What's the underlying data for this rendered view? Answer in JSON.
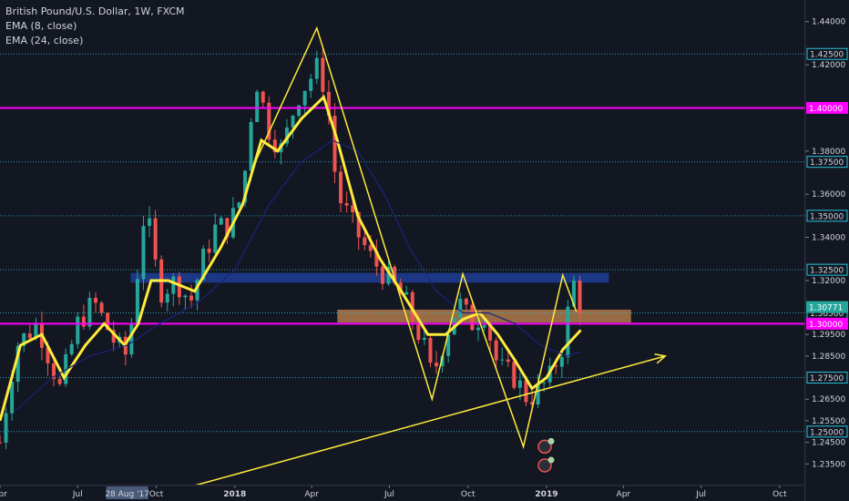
{
  "legend": {
    "title": "British Pound/U.S. Dollar, 1W, FXCM",
    "ema1": "EMA (8, close)",
    "ema2": "EMA (24, close)"
  },
  "colors": {
    "background": "#131722",
    "up": "#26a69a",
    "down": "#ef5350",
    "ema_fast": "#ffeb3b",
    "ema_slow": "#1a237e",
    "magenta": "#ff00ff",
    "hline_dotted": "#26c6da",
    "support_zone": "#b07a4a",
    "resistance_zone": "#2962ff",
    "annotation": "#ffeb3b"
  },
  "chart_data": {
    "type": "candlestick",
    "symbol": "British Pound/U.S. Dollar",
    "interval": "1W",
    "source": "FXCM",
    "ylim": [
      1.225,
      1.45
    ],
    "x_range": [
      "2017-04-01",
      "2019-10-31"
    ],
    "x_ticks": [
      {
        "date": "2017-04-01",
        "label": "Apr"
      },
      {
        "date": "2017-07-01",
        "label": "Jul"
      },
      {
        "date": "2017-10-01",
        "label": "Oct"
      },
      {
        "date": "2018-01-01",
        "label": "2018"
      },
      {
        "date": "2018-04-01",
        "label": "Apr"
      },
      {
        "date": "2018-07-01",
        "label": "Jul"
      },
      {
        "date": "2018-10-01",
        "label": "Oct"
      },
      {
        "date": "2019-01-01",
        "label": "2019"
      },
      {
        "date": "2019-04-01",
        "label": "Apr"
      },
      {
        "date": "2019-07-01",
        "label": "Jul"
      },
      {
        "date": "2019-10-01",
        "label": "Oct"
      }
    ],
    "y_ticks": [
      "1.44000",
      "1.42000",
      "1.38000",
      "1.36000",
      "1.34000",
      "1.32000",
      "1.29500",
      "1.28500",
      "1.26500",
      "1.25500",
      "1.24500",
      "1.23500"
    ],
    "y_levels_labeled": [
      "1.42500",
      "1.37500",
      "1.35000",
      "1.32500",
      "1.30500",
      "1.27500",
      "1.25000"
    ],
    "highlighted_labels": [
      {
        "value": 1.4,
        "label": "1.40000"
      },
      {
        "value": 1.3,
        "label": "1.30000"
      },
      {
        "value": 1.30771,
        "label": "1.30771"
      }
    ],
    "crosshair_date_label": "28 Aug '17",
    "magenta_lines": [
      1.4,
      1.3
    ],
    "dotted_levels": [
      1.425,
      1.375,
      1.35,
      1.325,
      1.305,
      1.275,
      1.25
    ],
    "zones": [
      {
        "name": "resistance",
        "from": "2017-09-01",
        "to": "2019-03-15",
        "low": 1.319,
        "high": 1.3235
      },
      {
        "name": "support",
        "from": "2018-05-01",
        "to": "2019-04-10",
        "low": 1.3005,
        "high": 1.3065
      }
    ],
    "close_path": [
      [
        "2017-04-01",
        1.245
      ],
      [
        "2017-04-20",
        1.29
      ],
      [
        "2017-05-15",
        1.3
      ],
      [
        "2017-06-10",
        1.27
      ],
      [
        "2017-07-01",
        1.3
      ],
      [
        "2017-07-20",
        1.31
      ],
      [
        "2017-08-15",
        1.29
      ],
      [
        "2017-08-28",
        1.285
      ],
      [
        "2017-09-05",
        1.31
      ],
      [
        "2017-09-18",
        1.355
      ],
      [
        "2017-10-05",
        1.315
      ],
      [
        "2017-10-25",
        1.32
      ],
      [
        "2017-11-10",
        1.31
      ],
      [
        "2017-11-25",
        1.33
      ],
      [
        "2017-12-10",
        1.345
      ],
      [
        "2017-12-25",
        1.345
      ],
      [
        "2018-01-10",
        1.36
      ],
      [
        "2018-01-25",
        1.415
      ],
      [
        "2018-02-10",
        1.39
      ],
      [
        "2018-02-25",
        1.38
      ],
      [
        "2018-03-15",
        1.405
      ],
      [
        "2018-04-10",
        1.42
      ],
      [
        "2018-04-20",
        1.4
      ],
      [
        "2018-05-01",
        1.36
      ],
      [
        "2018-05-20",
        1.345
      ],
      [
        "2018-06-10",
        1.33
      ],
      [
        "2018-07-01",
        1.32
      ],
      [
        "2018-07-20",
        1.31
      ],
      [
        "2018-08-10",
        1.29
      ],
      [
        "2018-08-20",
        1.275
      ],
      [
        "2018-09-05",
        1.295
      ],
      [
        "2018-09-20",
        1.31
      ],
      [
        "2018-10-05",
        1.3
      ],
      [
        "2018-10-20",
        1.305
      ],
      [
        "2018-11-05",
        1.28
      ],
      [
        "2018-11-25",
        1.275
      ],
      [
        "2018-12-10",
        1.265
      ],
      [
        "2018-12-25",
        1.27
      ],
      [
        "2019-01-05",
        1.275
      ],
      [
        "2019-01-20",
        1.29
      ],
      [
        "2019-02-01",
        1.32
      ],
      [
        "2019-02-10",
        1.3077
      ]
    ],
    "series": [
      {
        "name": "EMA (8, close)",
        "color": "#ffeb3b",
        "points": [
          [
            "2017-04-01",
            1.255
          ],
          [
            "2017-04-25",
            1.29
          ],
          [
            "2017-05-20",
            1.295
          ],
          [
            "2017-06-15",
            1.275
          ],
          [
            "2017-07-10",
            1.29
          ],
          [
            "2017-08-01",
            1.3
          ],
          [
            "2017-08-25",
            1.29
          ],
          [
            "2017-09-10",
            1.3
          ],
          [
            "2017-09-25",
            1.32
          ],
          [
            "2017-10-15",
            1.32
          ],
          [
            "2017-11-15",
            1.315
          ],
          [
            "2017-12-15",
            1.335
          ],
          [
            "2018-01-10",
            1.355
          ],
          [
            "2018-02-01",
            1.385
          ],
          [
            "2018-02-20",
            1.38
          ],
          [
            "2018-03-20",
            1.395
          ],
          [
            "2018-04-15",
            1.405
          ],
          [
            "2018-05-01",
            1.385
          ],
          [
            "2018-05-25",
            1.35
          ],
          [
            "2018-06-20",
            1.33
          ],
          [
            "2018-07-15",
            1.315
          ],
          [
            "2018-08-15",
            1.295
          ],
          [
            "2018-09-05",
            1.295
          ],
          [
            "2018-09-25",
            1.302
          ],
          [
            "2018-10-15",
            1.305
          ],
          [
            "2018-11-05",
            1.295
          ],
          [
            "2018-11-25",
            1.283
          ],
          [
            "2018-12-15",
            1.27
          ],
          [
            "2019-01-01",
            1.275
          ],
          [
            "2019-01-20",
            1.288
          ],
          [
            "2019-02-10",
            1.297
          ]
        ]
      },
      {
        "name": "EMA (24, close)",
        "color": "#1a237e",
        "points": [
          [
            "2017-04-20",
            1.26
          ],
          [
            "2017-06-01",
            1.275
          ],
          [
            "2017-07-15",
            1.285
          ],
          [
            "2017-08-28",
            1.29
          ],
          [
            "2017-10-05",
            1.3
          ],
          [
            "2017-11-20",
            1.31
          ],
          [
            "2018-01-01",
            1.325
          ],
          [
            "2018-02-10",
            1.355
          ],
          [
            "2018-03-20",
            1.375
          ],
          [
            "2018-04-25",
            1.385
          ],
          [
            "2018-05-25",
            1.38
          ],
          [
            "2018-06-25",
            1.36
          ],
          [
            "2018-07-25",
            1.335
          ],
          [
            "2018-08-25",
            1.315
          ],
          [
            "2018-09-25",
            1.305
          ],
          [
            "2018-10-25",
            1.305
          ],
          [
            "2018-11-25",
            1.3
          ],
          [
            "2018-12-25",
            1.29
          ],
          [
            "2019-01-25",
            1.285
          ],
          [
            "2019-02-10",
            1.287
          ]
        ]
      }
    ],
    "annotations": [
      {
        "type": "zigzag",
        "points": [
          [
            "2018-01-25",
            1.375
          ],
          [
            "2018-04-07",
            1.437
          ],
          [
            "2018-08-20",
            1.265
          ],
          [
            "2018-09-25",
            1.323
          ],
          [
            "2018-12-05",
            1.243
          ],
          [
            "2019-01-20",
            1.3225
          ],
          [
            "2019-02-05",
            1.3055
          ]
        ]
      },
      {
        "type": "arrow",
        "points": [
          [
            "2017-11-15",
            1.225
          ],
          [
            "2019-05-20",
            1.285
          ]
        ]
      }
    ]
  }
}
